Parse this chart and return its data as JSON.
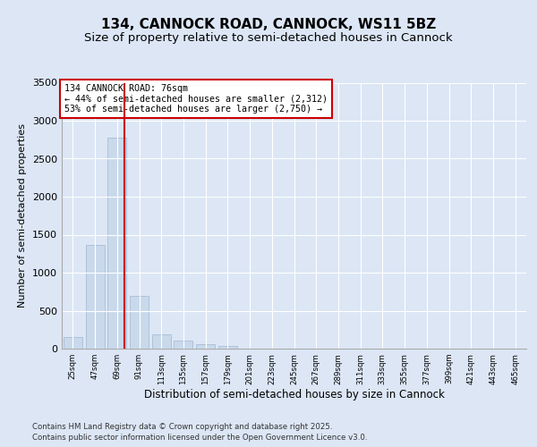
{
  "title1": "134, CANNOCK ROAD, CANNOCK, WS11 5BZ",
  "title2": "Size of property relative to semi-detached houses in Cannock",
  "xlabel": "Distribution of semi-detached houses by size in Cannock",
  "ylabel": "Number of semi-detached properties",
  "categories": [
    "25sqm",
    "47sqm",
    "69sqm",
    "91sqm",
    "113sqm",
    "135sqm",
    "157sqm",
    "179sqm",
    "201sqm",
    "223sqm",
    "245sqm",
    "267sqm",
    "289sqm",
    "311sqm",
    "333sqm",
    "355sqm",
    "377sqm",
    "399sqm",
    "421sqm",
    "443sqm",
    "465sqm"
  ],
  "values": [
    150,
    1360,
    2780,
    700,
    185,
    110,
    55,
    40,
    0,
    0,
    0,
    0,
    0,
    0,
    0,
    0,
    0,
    0,
    0,
    0,
    0
  ],
  "bar_color": "#c9d9eb",
  "bar_edge_color": "#aabdd4",
  "vline_color": "#cc0000",
  "annotation_line1": "134 CANNOCK ROAD: 76sqm",
  "annotation_line2": "← 44% of semi-detached houses are smaller (2,312)",
  "annotation_line3": "53% of semi-detached houses are larger (2,750) →",
  "ylim": [
    0,
    3500
  ],
  "yticks": [
    0,
    500,
    1000,
    1500,
    2000,
    2500,
    3000,
    3500
  ],
  "background_color": "#dce6f5",
  "plot_bg_color": "#dce6f5",
  "footer1": "Contains HM Land Registry data © Crown copyright and database right 2025.",
  "footer2": "Contains public sector information licensed under the Open Government Licence v3.0.",
  "title_fontsize": 11,
  "subtitle_fontsize": 9.5,
  "annotation_box_color": "#ffffff",
  "annotation_box_edge": "#cc0000"
}
